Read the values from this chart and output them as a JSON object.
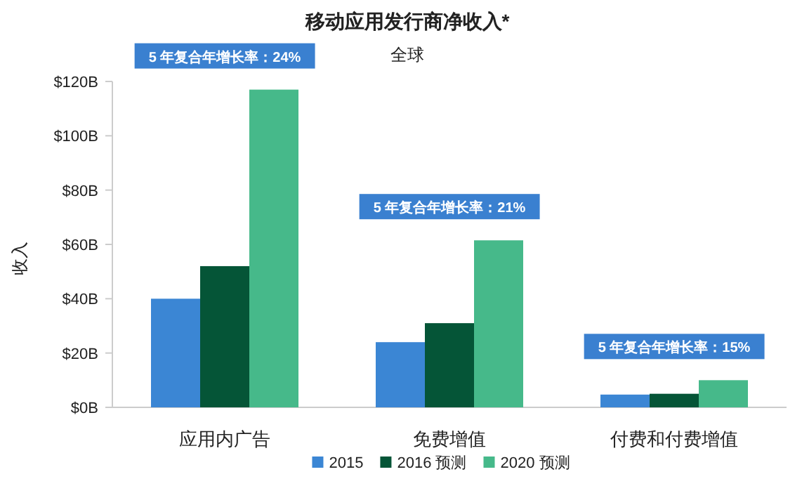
{
  "chart_data": {
    "type": "bar",
    "title": "移动应用发行商净收入*",
    "subtitle": "全球",
    "ylabel": "收入",
    "categories": [
      "应用内广告",
      "免费增值",
      "付费和付费增值"
    ],
    "series": [
      {
        "name": "2015",
        "color": "#3b86d4",
        "values": [
          40,
          24,
          4.7
        ]
      },
      {
        "name": "2016 预测",
        "color": "#055537",
        "values": [
          52,
          31,
          5
        ]
      },
      {
        "name": "2020 预测",
        "color": "#46b98a",
        "values": [
          117,
          61.5,
          10
        ]
      }
    ],
    "ylim": [
      0,
      120
    ],
    "yticks": [
      {
        "value": 0,
        "label": "$0B"
      },
      {
        "value": 20,
        "label": "$20B"
      },
      {
        "value": 40,
        "label": "$40B"
      },
      {
        "value": 60,
        "label": "$60B"
      },
      {
        "value": 80,
        "label": "$80B"
      },
      {
        "value": 100,
        "label": "$100B"
      },
      {
        "value": 120,
        "label": "$120B"
      }
    ],
    "annotations": [
      "5 年复合年增长率：24%",
      "5 年复合年增长率：21%",
      "5 年复合年增长率：15%"
    ],
    "legend": "bottom",
    "grid": false
  }
}
